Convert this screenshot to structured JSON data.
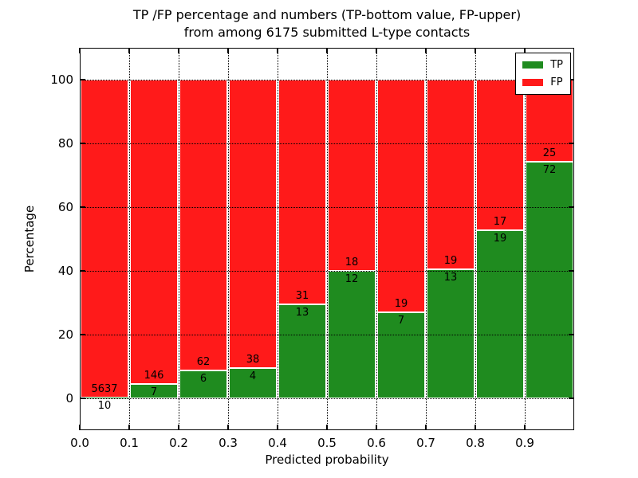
{
  "title": {
    "line1": "TP /FP percentage and numbers (TP-bottom value, FP-upper)",
    "line2": "from among 6175 submitted L-type contacts"
  },
  "chart_data": {
    "type": "bar",
    "stacked": true,
    "title": "TP /FP percentage and numbers (TP-bottom value, FP-upper) from among 6175 submitted L-type contacts",
    "xlabel": "Predicted probability",
    "ylabel": "Percentage",
    "xlim": [
      0.0,
      1.0
    ],
    "ylim": [
      -10,
      110
    ],
    "x_ticks": [
      "0.0",
      "0.1",
      "0.2",
      "0.3",
      "0.4",
      "0.5",
      "0.6",
      "0.7",
      "0.8",
      "0.9"
    ],
    "y_ticks": [
      0,
      20,
      40,
      60,
      80,
      100
    ],
    "grid": "dotted black, drawn on top of bars",
    "legend_position": "upper right",
    "series": [
      {
        "name": "TP",
        "color": "#1f8b1f"
      },
      {
        "name": "FP",
        "color": "#ff1a1a"
      }
    ],
    "bins": [
      {
        "range": [
          0.0,
          0.1
        ],
        "tp": 10,
        "fp": 5637
      },
      {
        "range": [
          0.1,
          0.2
        ],
        "tp": 7,
        "fp": 146
      },
      {
        "range": [
          0.2,
          0.3
        ],
        "tp": 6,
        "fp": 62
      },
      {
        "range": [
          0.3,
          0.4
        ],
        "tp": 4,
        "fp": 38
      },
      {
        "range": [
          0.4,
          0.5
        ],
        "tp": 13,
        "fp": 31
      },
      {
        "range": [
          0.5,
          0.6
        ],
        "tp": 12,
        "fp": 18
      },
      {
        "range": [
          0.6,
          0.7
        ],
        "tp": 7,
        "fp": 19
      },
      {
        "range": [
          0.7,
          0.8
        ],
        "tp": 13,
        "fp": 19
      },
      {
        "range": [
          0.8,
          0.9
        ],
        "tp": 19,
        "fp": 17
      },
      {
        "range": [
          0.9,
          1.0
        ],
        "tp": 72,
        "fp": 25
      }
    ],
    "total_contacts": 6175,
    "value_encoding": "bar green height = TP/(TP+FP) in percent; red fills up to 100%; TP count printed below boundary, FP count printed above boundary"
  }
}
